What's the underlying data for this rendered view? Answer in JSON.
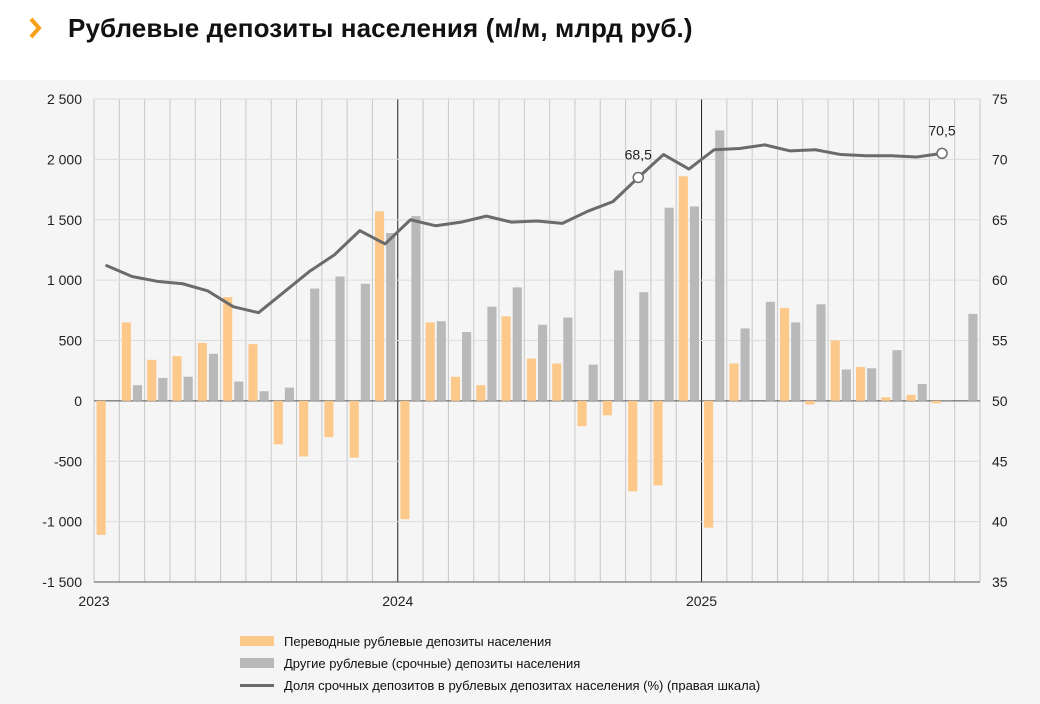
{
  "title": "Рублевые депозиты населения (м/м, млрд руб.)",
  "colors": {
    "transfer": "#fdc98a",
    "term": "#b9b9b9",
    "line": "#6b6b6b",
    "accent": "#f6a01a"
  },
  "chart_data": {
    "type": "bar+line",
    "title": "Рублевые депозиты населения (м/м, млрд руб.)",
    "xlabel": "",
    "x_labels": [
      "2023",
      "2024",
      "2025"
    ],
    "left_axis": {
      "range": [
        -1500,
        2500
      ],
      "ticks": [
        -1500,
        -1000,
        -500,
        0,
        500,
        1000,
        1500,
        2000,
        2500
      ],
      "tick_labels": [
        "-1 500",
        "-1 000",
        "-500",
        "0",
        "500",
        "1 000",
        "1 500",
        "2 000",
        "2 500"
      ]
    },
    "right_axis": {
      "range": [
        35,
        75
      ],
      "ticks": [
        35,
        40,
        45,
        50,
        55,
        60,
        65,
        70,
        75
      ],
      "tick_labels": [
        "35",
        "40",
        "45",
        "50",
        "55",
        "60",
        "65",
        "70",
        "75"
      ]
    },
    "months": 35,
    "series": [
      {
        "name": "Переводные рублевые депозиты населения",
        "type": "bar",
        "values": [
          -1110,
          650,
          340,
          370,
          480,
          860,
          470,
          -360,
          -460,
          -300,
          -470,
          1570,
          -980,
          650,
          200,
          130,
          700,
          350,
          310,
          -210,
          -120,
          -750,
          -700,
          1860,
          -1050,
          310,
          0,
          770,
          -30,
          500,
          280,
          30,
          50,
          -20,
          0
        ]
      },
      {
        "name": "Другие рублевые (срочные) депозиты населения",
        "type": "bar",
        "values": [
          0,
          130,
          190,
          200,
          390,
          160,
          80,
          110,
          930,
          1030,
          970,
          1390,
          1530,
          660,
          570,
          780,
          940,
          630,
          690,
          300,
          1080,
          900,
          1600,
          1610,
          2240,
          600,
          820,
          650,
          800,
          260,
          270,
          420,
          140,
          -10,
          720
        ]
      },
      {
        "name": "Доля срочных депозитов в рублевых депозитах населения (%) (правая шкала)",
        "type": "line",
        "axis": "right",
        "values": [
          61.2,
          60.3,
          59.9,
          59.7,
          59.1,
          57.8,
          57.3,
          59.0,
          60.7,
          62.1,
          64.1,
          63.0,
          65.0,
          64.5,
          64.8,
          65.3,
          64.8,
          64.9,
          64.7,
          65.7,
          66.5,
          68.5,
          70.4,
          69.2,
          70.8,
          70.9,
          71.2,
          70.7,
          70.8,
          70.4,
          70.3,
          70.3,
          70.2,
          70.5,
          null
        ]
      }
    ],
    "annotations": [
      {
        "month": 21,
        "value": 68.5,
        "label": "68,5"
      },
      {
        "month": 33,
        "value": 70.5,
        "label": "70,5"
      }
    ],
    "legend": "bottom"
  }
}
